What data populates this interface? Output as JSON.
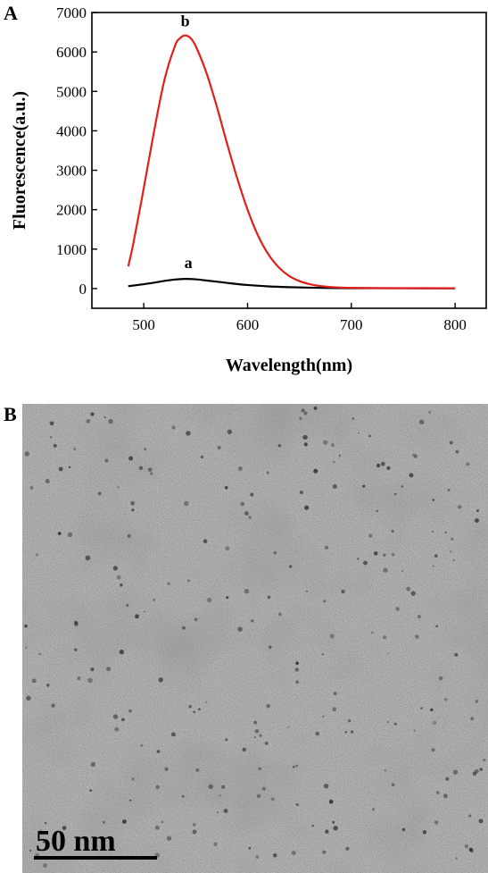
{
  "panel_a_label": "A",
  "panel_b_label": "B",
  "chart_data": {
    "type": "line",
    "title": "",
    "xlabel": "Wavelength(nm)",
    "ylabel": "Fluorescence(a.u.)",
    "xlim": [
      450,
      830
    ],
    "ylim": [
      -500,
      7000
    ],
    "xticks": [
      500,
      600,
      700,
      800
    ],
    "yticks": [
      0,
      1000,
      2000,
      3000,
      4000,
      5000,
      6000,
      7000
    ],
    "series": [
      {
        "name": "a",
        "color": "#000000",
        "x": [
          485,
          500,
          510,
          520,
          530,
          540,
          550,
          560,
          570,
          580,
          590,
          600,
          620,
          640,
          660,
          680,
          700,
          750,
          800
        ],
        "y": [
          60,
          110,
          150,
          195,
          230,
          245,
          235,
          205,
          175,
          145,
          115,
          90,
          55,
          35,
          22,
          15,
          10,
          8,
          5
        ]
      },
      {
        "name": "b",
        "color": "#e0201b",
        "x": [
          485,
          490,
          500,
          510,
          520,
          530,
          535,
          540,
          545,
          550,
          560,
          570,
          580,
          590,
          600,
          610,
          620,
          630,
          640,
          650,
          660,
          670,
          680,
          690,
          700,
          720,
          750,
          800
        ],
        "y": [
          560,
          1150,
          2550,
          4000,
          5300,
          6150,
          6350,
          6420,
          6350,
          6150,
          5500,
          4650,
          3700,
          2800,
          2000,
          1350,
          870,
          540,
          320,
          190,
          110,
          65,
          40,
          25,
          18,
          12,
          10,
          8
        ]
      }
    ],
    "annotations": [
      {
        "text": "b",
        "x": 540,
        "y": 6650
      },
      {
        "text": "a",
        "x": 543,
        "y": 520
      }
    ]
  },
  "micrograph": {
    "scale_bar_text": "50 nm"
  }
}
